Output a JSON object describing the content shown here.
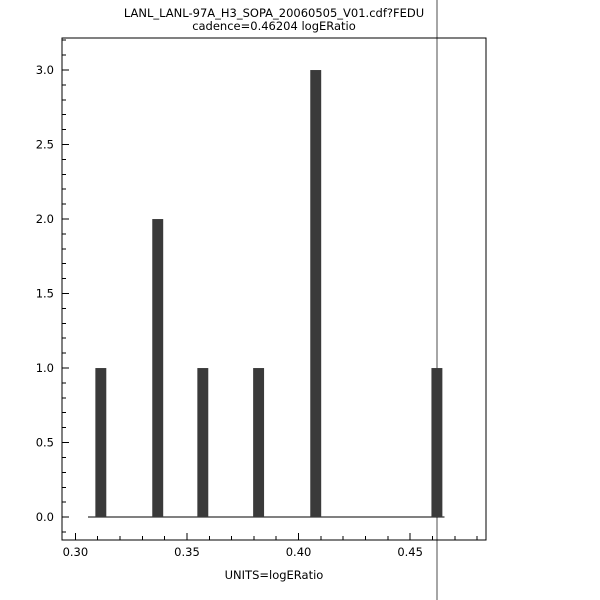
{
  "chart_data": {
    "type": "bar",
    "title": "LANL_LANL-97A_H3_SOPA_20060505_V01.cdf?FEDU",
    "subtitle": "cadence=0.46204 logERatio",
    "xlabel": "UNITS=logERatio",
    "ylabel": "",
    "x": [
      0.3114,
      0.3369,
      0.3571,
      0.3821,
      0.4077,
      0.462
    ],
    "values": [
      1,
      2,
      1,
      1,
      3,
      1
    ],
    "xlim": [
      0.294,
      0.484
    ],
    "ylim": [
      -0.154,
      3.215
    ],
    "xticks": [
      "0.30",
      "0.35",
      "0.40",
      "0.45"
    ],
    "yticks": [
      "0.0",
      "0.5",
      "1.0",
      "1.5",
      "2.0",
      "2.5",
      "3.0"
    ],
    "x_minor_step": 0.01,
    "y_minor_step": 0.1,
    "bar_width": 0.0049,
    "baseline": {
      "y": 0,
      "x0": 0.3056,
      "x1": 0.4655
    },
    "vline_x": 0.46204,
    "grid": false,
    "legend": null,
    "colors": {
      "bar": "#3a3a3a",
      "axis": "#000000",
      "vline": "#4d4d4d",
      "background": "#ffffff"
    }
  }
}
